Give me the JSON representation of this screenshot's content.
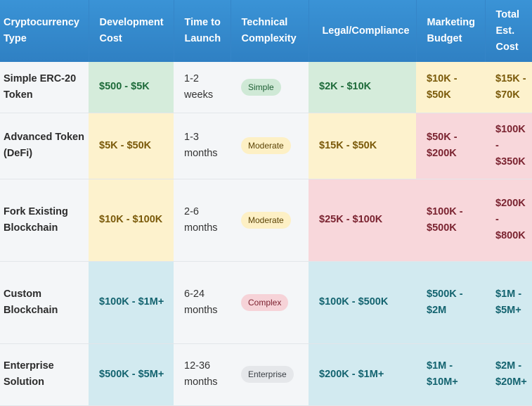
{
  "table": {
    "headers": [
      "Cryptocurrency Type",
      "Development Cost",
      "Time to Launch",
      "Technical Complexity",
      "Legal/Compliance",
      "Marketing Budget",
      "Total Est. Cost"
    ],
    "rows": [
      {
        "type": "Simple ERC-20 Token",
        "dev_cost": "$500 - $5K",
        "time": "1-2 weeks",
        "complexity": "Simple",
        "legal": "$2K - $10K",
        "marketing": "$10K - $50K",
        "total": "$15K - $70K"
      },
      {
        "type": "Advanced Token (DeFi)",
        "dev_cost": "$5K - $50K",
        "time": "1-3 months",
        "complexity": "Moderate",
        "legal": "$15K - $50K",
        "marketing": "$50K - $200K",
        "total": "$100K - $350K"
      },
      {
        "type": "Fork Existing Blockchain",
        "dev_cost": "$10K - $100K",
        "time": "2-6 months",
        "complexity": "Moderate",
        "legal": "$25K - $100K",
        "marketing": "$100K - $500K",
        "total": "$200K - $800K"
      },
      {
        "type": "Custom Blockchain",
        "dev_cost": "$100K - $1M+",
        "time": "6-24 months",
        "complexity": "Complex",
        "legal": "$100K - $500K",
        "marketing": "$500K - $2M",
        "total": "$1M - $5M+"
      },
      {
        "type": "Enterprise Solution",
        "dev_cost": "$500K - $5M+",
        "time": "12-36 months",
        "complexity": "Enterprise",
        "legal": "$200K - $1M+",
        "marketing": "$1M - $10M+",
        "total": "$2M - $20M+"
      }
    ]
  },
  "colors": {
    "header": "#3a93d6",
    "green_cell": "#d5ecdb",
    "yellow_cell": "#fdf2cd",
    "red_cell": "#f8d7db",
    "teal_cell": "#d2eaf0"
  }
}
